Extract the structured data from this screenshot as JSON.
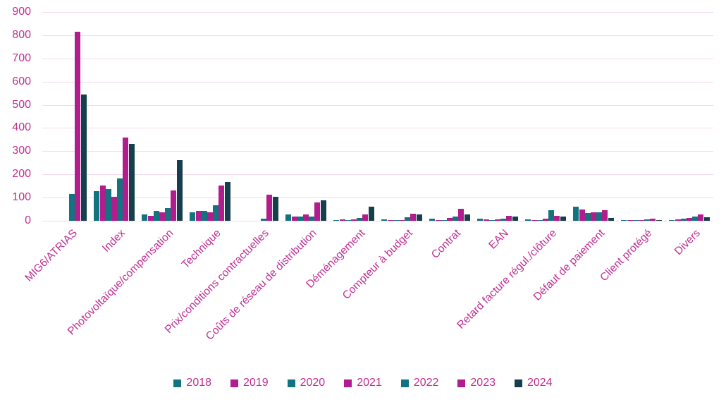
{
  "chart_data": {
    "type": "bar",
    "title": "",
    "xlabel": "",
    "ylabel": "",
    "categories": [
      "MIG6/ATRIAS",
      "Index",
      "Photovoltaïque/compensation",
      "Technique",
      "Prix/conditions contractuelles",
      "Coûts de réseau de distribution",
      "Déménagement",
      "Compteur à budget",
      "Contrat",
      "EAN",
      "Retard facture régul./clôture",
      "Défaut de paiement",
      "Client protégé",
      "Divers"
    ],
    "series": [
      {
        "name": "2018",
        "color": "#147380",
        "values": [
          0,
          127,
          26,
          38,
          0,
          28,
          3,
          6,
          8,
          8,
          5,
          62,
          2,
          3
        ]
      },
      {
        "name": "2019",
        "color": "#b11d8d",
        "values": [
          0,
          152,
          20,
          44,
          0,
          18,
          5,
          2,
          4,
          5,
          2,
          50,
          3,
          6
        ]
      },
      {
        "name": "2020",
        "color": "#147380",
        "values": [
          0,
          138,
          42,
          44,
          0,
          18,
          3,
          4,
          4,
          2,
          2,
          32,
          2,
          8
        ]
      },
      {
        "name": "2021",
        "color": "#b11d8d",
        "values": [
          0,
          104,
          38,
          38,
          0,
          28,
          5,
          3,
          12,
          5,
          8,
          35,
          3,
          12
        ]
      },
      {
        "name": "2022",
        "color": "#147380",
        "values": [
          115,
          181,
          55,
          66,
          10,
          18,
          12,
          16,
          18,
          8,
          47,
          38,
          6,
          17
        ]
      },
      {
        "name": "2023",
        "color": "#b11d8d",
        "values": [
          815,
          360,
          132,
          152,
          114,
          80,
          28,
          30,
          52,
          20,
          22,
          45,
          9,
          28
        ]
      },
      {
        "name": "2024",
        "color": "#153f4c",
        "values": [
          545,
          330,
          262,
          168,
          104,
          88,
          62,
          28,
          28,
          19,
          17,
          13,
          4,
          15
        ]
      }
    ],
    "ylim": [
      0,
      900
    ],
    "yticks": [
      0,
      100,
      200,
      300,
      400,
      500,
      600,
      700,
      800,
      900
    ],
    "grid": "horizontal",
    "legend_position": "bottom"
  },
  "colors": {
    "axis_text": "#c02d92",
    "gridline": "#f3d9ec",
    "background": "#ffffff"
  }
}
